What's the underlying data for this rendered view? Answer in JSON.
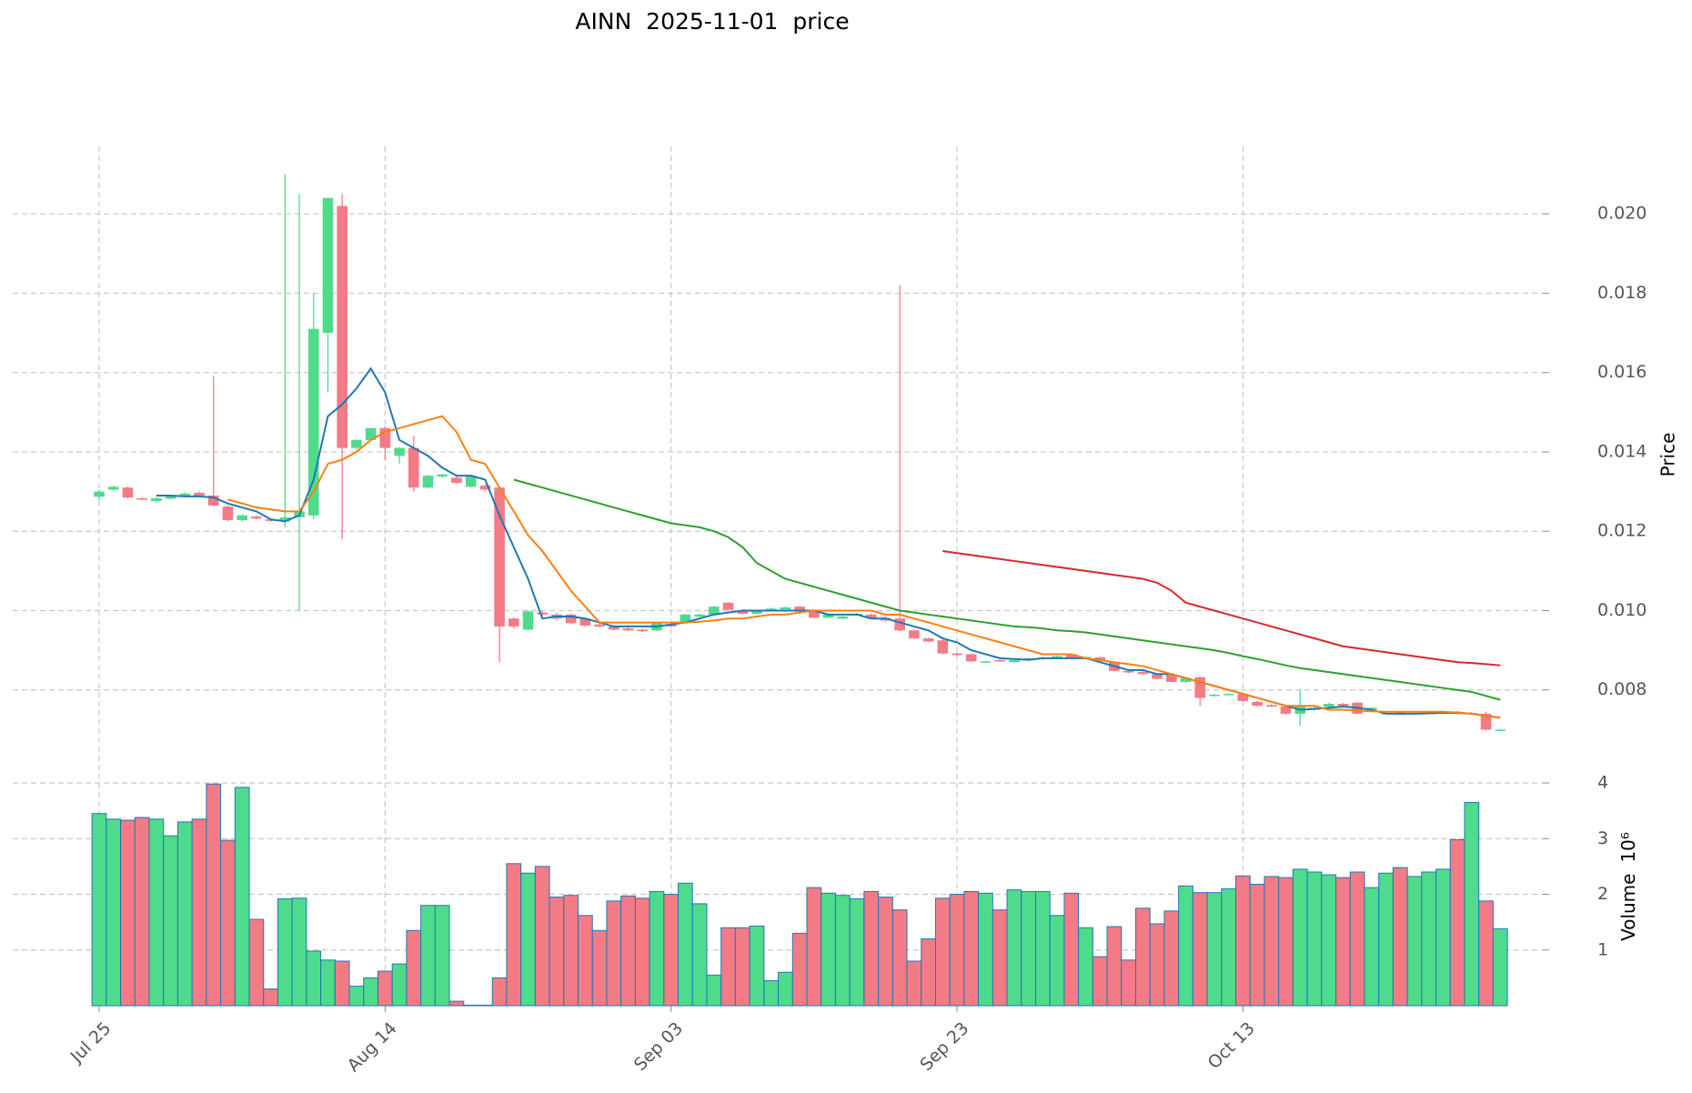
{
  "chart_data": {
    "type": "candlestick",
    "title": "AINN  2025-11-01  price",
    "ylabel": "Price",
    "up_color": "#4fdb8c",
    "down_color": "#f37b85",
    "grid": true,
    "categories": [
      "Jul 25",
      null,
      null,
      null,
      null,
      null,
      null,
      null,
      null,
      null,
      null,
      null,
      null,
      null,
      null,
      null,
      null,
      null,
      null,
      null,
      "Aug 14",
      null,
      null,
      null,
      null,
      null,
      null,
      null,
      null,
      null,
      null,
      null,
      null,
      null,
      null,
      null,
      null,
      null,
      null,
      null,
      "Sep 03",
      null,
      null,
      null,
      null,
      null,
      null,
      null,
      null,
      null,
      null,
      null,
      null,
      null,
      null,
      null,
      null,
      null,
      null,
      null,
      "Sep 23",
      null,
      null,
      null,
      null,
      null,
      null,
      null,
      null,
      null,
      null,
      null,
      null,
      null,
      null,
      null,
      null,
      null,
      null,
      null,
      "Oct 13",
      null,
      null,
      null,
      null,
      null,
      null,
      null,
      null,
      null,
      null,
      null,
      null,
      null,
      null,
      null,
      null,
      null,
      null
    ],
    "open": [
      0.01287,
      0.01305,
      0.0131,
      0.01283,
      0.01276,
      0.01282,
      0.01288,
      0.01297,
      0.0129,
      0.01262,
      0.01228,
      0.01237,
      0.0123,
      0.01225,
      0.01235,
      0.0124,
      0.017,
      0.0202,
      0.0141,
      0.0143,
      0.0146,
      0.0139,
      0.0141,
      0.0131,
      0.01338,
      0.01335,
      0.01312,
      0.01315,
      0.0131,
      0.0098,
      0.00952,
      0.00995,
      0.0099,
      0.0099,
      0.0098,
      0.00965,
      0.0096,
      0.00955,
      0.00952,
      0.0095,
      0.00965,
      0.0097,
      0.00985,
      0.0099,
      0.0102,
      0.01,
      0.00992,
      0.01,
      0.01003,
      0.0101,
      0.01,
      0.00982,
      0.0098,
      0.00988,
      0.0099,
      0.00982,
      0.0098,
      0.0095,
      0.0093,
      0.00925,
      0.00892,
      0.0089,
      0.0087,
      0.00875,
      0.0087,
      0.00875,
      0.00878,
      0.0088,
      0.0089,
      0.0088,
      0.00882,
      0.0087,
      0.00848,
      0.00845,
      0.0084,
      0.00838,
      0.0082,
      0.00832,
      0.00785,
      0.00788,
      0.0079,
      0.0077,
      0.00762,
      0.00758,
      0.0074,
      0.0075,
      0.00758,
      0.00765,
      0.00768,
      0.0075,
      0.0074,
      0.00745,
      0.0074,
      0.00742,
      0.00742,
      0.00745,
      0.0074,
      0.0074,
      0.00698
    ],
    "high": [
      0.01305,
      0.01315,
      0.01313,
      0.01285,
      0.01286,
      0.0129,
      0.01298,
      0.013,
      0.0159,
      0.01265,
      0.01243,
      0.0124,
      0.01232,
      0.021,
      0.0205,
      0.018,
      0.0204,
      0.0205,
      0.01432,
      0.01462,
      0.01465,
      0.01412,
      0.0144,
      0.01342,
      0.01345,
      0.01338,
      0.01342,
      0.01318,
      0.01312,
      0.00983,
      0.01,
      0.00998,
      0.00995,
      0.00992,
      0.00982,
      0.00968,
      0.00962,
      0.00958,
      0.00955,
      0.00972,
      0.00968,
      0.00992,
      0.00993,
      0.01012,
      0.01022,
      0.01003,
      0.01002,
      0.01008,
      0.0101,
      0.01012,
      0.01003,
      0.00992,
      0.00987,
      0.00994,
      0.00993,
      0.00985,
      0.0182,
      0.00952,
      0.00932,
      0.00927,
      0.00894,
      0.00892,
      0.00874,
      0.00877,
      0.00877,
      0.00882,
      0.00884,
      0.00887,
      0.00892,
      0.00885,
      0.00884,
      0.00872,
      0.0085,
      0.00847,
      0.00842,
      0.0084,
      0.00832,
      0.00834,
      0.0079,
      0.00792,
      0.00792,
      0.00772,
      0.00764,
      0.0076,
      0.008,
      0.00757,
      0.00767,
      0.00767,
      0.0077,
      0.00757,
      0.00744,
      0.00747,
      0.00744,
      0.00747,
      0.00747,
      0.00747,
      0.00744,
      0.00745,
      0.00702
    ],
    "low": [
      0.01278,
      0.01302,
      0.01283,
      0.01278,
      0.01272,
      0.0128,
      0.01285,
      0.01288,
      0.01262,
      0.01225,
      0.01225,
      0.0123,
      0.01224,
      0.0121,
      0.01,
      0.0123,
      0.0155,
      0.0118,
      0.01405,
      0.01428,
      0.0138,
      0.0137,
      0.013,
      0.01308,
      0.01335,
      0.0132,
      0.0131,
      0.013,
      0.0087,
      0.00955,
      0.0095,
      0.00985,
      0.00975,
      0.00965,
      0.0096,
      0.00958,
      0.0095,
      0.00948,
      0.00946,
      0.00948,
      0.00958,
      0.00968,
      0.00983,
      0.00988,
      0.01,
      0.0099,
      0.0099,
      0.00998,
      0.01,
      0.00998,
      0.0098,
      0.0098,
      0.00978,
      0.00986,
      0.00978,
      0.00972,
      0.00948,
      0.00928,
      0.0092,
      0.0089,
      0.00886,
      0.0087,
      0.00868,
      0.00871,
      0.00868,
      0.00873,
      0.00876,
      0.00878,
      0.0088,
      0.00878,
      0.00873,
      0.00846,
      0.00842,
      0.00838,
      0.00826,
      0.00818,
      0.00818,
      0.0076,
      0.00783,
      0.00786,
      0.0077,
      0.00758,
      0.00756,
      0.00738,
      0.0071,
      0.00748,
      0.00756,
      0.00758,
      0.00738,
      0.00748,
      0.00738,
      0.00738,
      0.00738,
      0.0074,
      0.0074,
      0.00738,
      0.00738,
      0.00698,
      0.00696
    ],
    "close": [
      0.013,
      0.01312,
      0.01285,
      0.0128,
      0.01283,
      0.01288,
      0.01295,
      0.0129,
      0.01265,
      0.01228,
      0.0124,
      0.01232,
      0.01226,
      0.01235,
      0.0125,
      0.0171,
      0.0204,
      0.0141,
      0.0143,
      0.0146,
      0.0141,
      0.0141,
      0.0131,
      0.0134,
      0.01343,
      0.01322,
      0.0134,
      0.01305,
      0.0096,
      0.0096,
      0.00998,
      0.0099,
      0.0098,
      0.00968,
      0.00962,
      0.0096,
      0.00952,
      0.0095,
      0.00948,
      0.0097,
      0.0096,
      0.0099,
      0.0099,
      0.0101,
      0.01002,
      0.00992,
      0.01,
      0.01005,
      0.01008,
      0.01,
      0.00982,
      0.0099,
      0.00985,
      0.00992,
      0.0098,
      0.00975,
      0.0095,
      0.0093,
      0.00922,
      0.00892,
      0.00888,
      0.00872,
      0.00872,
      0.00873,
      0.00875,
      0.0088,
      0.00882,
      0.00885,
      0.00882,
      0.00883,
      0.00875,
      0.00848,
      0.00844,
      0.0084,
      0.00828,
      0.0082,
      0.0083,
      0.0078,
      0.00788,
      0.0079,
      0.00772,
      0.0076,
      0.00758,
      0.0074,
      0.00758,
      0.00755,
      0.00765,
      0.0076,
      0.0074,
      0.00755,
      0.00742,
      0.0074,
      0.00742,
      0.00745,
      0.00745,
      0.0074,
      0.00742,
      0.007,
      0.007
    ],
    "ylim": [
      0.006,
      0.0217
    ],
    "yticks": [
      0.008,
      {
        "value": 0.01,
        "label": "0.010"
      },
      0.012,
      0.014,
      0.016,
      0.018,
      {
        "value": 0.02,
        "label": "0.020"
      }
    ],
    "moving_averages": [
      {
        "color": "#1f77b4",
        "values": [
          null,
          null,
          null,
          null,
          0.0129,
          0.0129,
          0.01288,
          0.01288,
          0.01285,
          0.0127,
          0.0126,
          0.0125,
          0.0123,
          0.01225,
          0.0124,
          0.0133,
          0.0149,
          0.0152,
          0.0156,
          0.0161,
          0.0155,
          0.0143,
          0.0141,
          0.0139,
          0.0136,
          0.0134,
          0.0134,
          0.0133,
          0.0124,
          0.0116,
          0.0108,
          0.0098,
          0.00985,
          0.00985,
          0.0098,
          0.0097,
          0.0096,
          0.0096,
          0.0096,
          0.0096,
          0.00965,
          0.0097,
          0.0098,
          0.0099,
          0.00995,
          0.01,
          0.01,
          0.01,
          0.01,
          0.01,
          0.01,
          0.0099,
          0.0099,
          0.0099,
          0.0098,
          0.0098,
          0.0097,
          0.0096,
          0.0095,
          0.0093,
          0.0092,
          0.009,
          0.0089,
          0.0088,
          0.00878,
          0.00876,
          0.0088,
          0.0088,
          0.0088,
          0.0088,
          0.0087,
          0.0086,
          0.0085,
          0.0085,
          0.0084,
          0.0084,
          0.0083,
          0.0082,
          0.0081,
          0.008,
          0.0079,
          0.0078,
          0.0077,
          0.0076,
          0.0075,
          0.00752,
          0.00755,
          0.00758,
          0.00755,
          0.0075,
          0.0074,
          0.0074,
          0.0074,
          0.00741,
          0.00742,
          0.00742,
          0.0074,
          0.00735,
          0.0073
        ]
      },
      {
        "color": "#ff7f0e",
        "values": [
          null,
          null,
          null,
          null,
          null,
          null,
          null,
          null,
          null,
          0.0128,
          0.0127,
          0.0126,
          0.01255,
          0.0125,
          0.0125,
          0.013,
          0.0137,
          0.0138,
          0.014,
          0.0143,
          0.0145,
          0.0146,
          0.0147,
          0.0148,
          0.0149,
          0.0145,
          0.0138,
          0.0137,
          0.0131,
          0.0125,
          0.0119,
          0.0115,
          0.011,
          0.0105,
          0.0101,
          0.0097,
          0.0097,
          0.0097,
          0.0097,
          0.0097,
          0.0097,
          0.0097,
          0.00972,
          0.00975,
          0.0098,
          0.0098,
          0.00985,
          0.0099,
          0.0099,
          0.00995,
          0.01,
          0.01,
          0.01,
          0.01,
          0.01,
          0.0099,
          0.0099,
          0.0098,
          0.0097,
          0.0096,
          0.0095,
          0.0094,
          0.0093,
          0.0092,
          0.0091,
          0.009,
          0.0089,
          0.0089,
          0.0089,
          0.0088,
          0.00875,
          0.0087,
          0.00865,
          0.0086,
          0.0085,
          0.0084,
          0.0083,
          0.0082,
          0.0081,
          0.008,
          0.0079,
          0.0078,
          0.0077,
          0.0076,
          0.0076,
          0.0076,
          0.0075,
          0.0075,
          0.00748,
          0.00746,
          0.00745,
          0.00745,
          0.00745,
          0.00745,
          0.00745,
          0.00743,
          0.0074,
          0.00735,
          0.0073
        ]
      },
      {
        "color": "#2ca02c",
        "values": [
          null,
          null,
          null,
          null,
          null,
          null,
          null,
          null,
          null,
          null,
          null,
          null,
          null,
          null,
          null,
          null,
          null,
          null,
          null,
          null,
          null,
          null,
          null,
          null,
          null,
          null,
          null,
          null,
          null,
          0.0133,
          0.0132,
          0.0131,
          0.013,
          0.0129,
          0.0128,
          0.0127,
          0.0126,
          0.0125,
          0.0124,
          0.0123,
          0.0122,
          0.01215,
          0.0121,
          0.012,
          0.01185,
          0.0116,
          0.0112,
          0.011,
          0.0108,
          0.0107,
          0.0106,
          0.0105,
          0.0104,
          0.0103,
          0.0102,
          0.0101,
          0.01,
          0.00995,
          0.0099,
          0.00985,
          0.0098,
          0.00975,
          0.0097,
          0.00965,
          0.0096,
          0.00958,
          0.00955,
          0.0095,
          0.00948,
          0.00945,
          0.0094,
          0.00935,
          0.0093,
          0.00925,
          0.0092,
          0.00915,
          0.0091,
          0.00905,
          0.009,
          0.00893,
          0.00885,
          0.00878,
          0.0087,
          0.00862,
          0.00855,
          0.0085,
          0.00845,
          0.0084,
          0.00835,
          0.0083,
          0.00825,
          0.0082,
          0.00815,
          0.0081,
          0.00805,
          0.008,
          0.00795,
          0.00785,
          0.00775
        ]
      },
      {
        "color": "#d62728",
        "values": [
          null,
          null,
          null,
          null,
          null,
          null,
          null,
          null,
          null,
          null,
          null,
          null,
          null,
          null,
          null,
          null,
          null,
          null,
          null,
          null,
          null,
          null,
          null,
          null,
          null,
          null,
          null,
          null,
          null,
          null,
          null,
          null,
          null,
          null,
          null,
          null,
          null,
          null,
          null,
          null,
          null,
          null,
          null,
          null,
          null,
          null,
          null,
          null,
          null,
          null,
          null,
          null,
          null,
          null,
          null,
          null,
          null,
          null,
          null,
          0.0115,
          0.01145,
          0.0114,
          0.01135,
          0.0113,
          0.01125,
          0.0112,
          0.01115,
          0.0111,
          0.01105,
          0.011,
          0.01095,
          0.0109,
          0.01085,
          0.0108,
          0.0107,
          0.0105,
          0.0102,
          0.0101,
          0.01,
          0.0099,
          0.0098,
          0.0097,
          0.0096,
          0.0095,
          0.0094,
          0.0093,
          0.0092,
          0.0091,
          0.00905,
          0.009,
          0.00895,
          0.0089,
          0.00885,
          0.0088,
          0.00875,
          0.0087,
          0.00868,
          0.00865,
          0.00862
        ]
      }
    ],
    "volume": {
      "ylabel": "Volume",
      "offset_label": "10⁶",
      "edge_color": "#1f77b4",
      "ylim": [
        0,
        4
      ],
      "yticks": [
        1,
        2,
        3,
        4
      ],
      "values": [
        3.45,
        3.35,
        3.33,
        3.38,
        3.35,
        3.05,
        3.3,
        3.35,
        3.98,
        2.97,
        3.92,
        1.55,
        0.3,
        1.92,
        1.93,
        0.98,
        0.82,
        0.8,
        0.35,
        0.5,
        0.62,
        0.75,
        1.35,
        1.8,
        1.8,
        0.08,
        0.01,
        0.01,
        0.5,
        2.55,
        2.38,
        2.5,
        1.95,
        1.98,
        1.62,
        1.35,
        1.88,
        1.97,
        1.93,
        2.05,
        2.0,
        2.2,
        1.83,
        0.55,
        1.4,
        1.4,
        1.43,
        0.45,
        0.6,
        1.3,
        2.12,
        2.02,
        1.98,
        1.92,
        2.05,
        1.95,
        1.72,
        0.8,
        1.2,
        1.93,
        2.0,
        2.05,
        2.02,
        1.72,
        2.08,
        2.05,
        2.05,
        1.62,
        2.02,
        1.4,
        0.88,
        1.42,
        0.82,
        1.75,
        1.47,
        1.7,
        2.15,
        2.03,
        2.03,
        2.1,
        2.33,
        2.18,
        2.32,
        2.3,
        2.45,
        2.4,
        2.35,
        2.3,
        2.4,
        2.12,
        2.38,
        2.48,
        2.32,
        2.4,
        2.45,
        2.98,
        3.65,
        1.88,
        1.38
      ]
    }
  }
}
